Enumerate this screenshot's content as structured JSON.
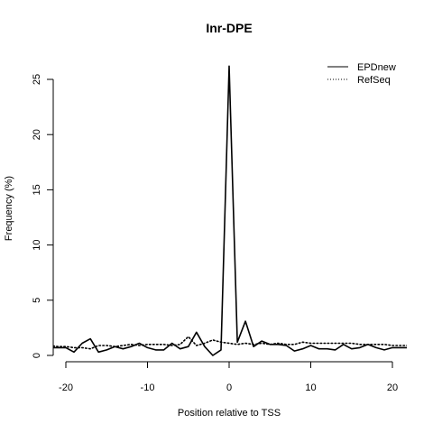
{
  "chart_data": {
    "type": "line",
    "title": "Inr-DPE",
    "xlabel": "Position relative to TSS",
    "ylabel": "Frequency (%)",
    "xlim": [
      -22,
      22
    ],
    "ylim": [
      0,
      27
    ],
    "xticks": [
      -20,
      -10,
      0,
      10,
      20
    ],
    "yticks": [
      0,
      5,
      10,
      15,
      20,
      25
    ],
    "grid": false,
    "legend_position": "top-right",
    "x": [
      -22,
      -21,
      -20,
      -19,
      -18,
      -17,
      -16,
      -15,
      -14,
      -13,
      -12,
      -11,
      -10,
      -9,
      -8,
      -7,
      -6,
      -5,
      -4,
      -3,
      -2,
      -1,
      0,
      1,
      2,
      3,
      4,
      5,
      6,
      7,
      8,
      9,
      10,
      11,
      12,
      13,
      14,
      15,
      16,
      17,
      18,
      19,
      20,
      21,
      22
    ],
    "series": [
      {
        "name": "EPDnew",
        "style": "solid",
        "values": [
          0.7,
          0.7,
          0.7,
          0.3,
          1.1,
          1.5,
          0.3,
          0.5,
          0.8,
          0.6,
          0.8,
          1.1,
          0.7,
          0.5,
          0.5,
          1.1,
          0.6,
          0.8,
          2.1,
          0.8,
          0.0,
          0.5,
          26.2,
          1.2,
          3.1,
          0.8,
          1.3,
          1.0,
          1.0,
          0.9,
          0.4,
          0.6,
          0.9,
          0.6,
          0.6,
          0.5,
          1.0,
          0.6,
          0.7,
          1.0,
          0.7,
          0.5,
          0.7,
          0.7,
          0.7
        ]
      },
      {
        "name": "RefSeq",
        "style": "dotted",
        "values": [
          0.9,
          0.8,
          0.8,
          0.7,
          0.7,
          0.6,
          0.9,
          0.9,
          0.8,
          0.9,
          1.0,
          0.9,
          1.0,
          1.0,
          1.0,
          0.9,
          1.0,
          1.7,
          0.9,
          1.1,
          1.4,
          1.2,
          1.1,
          1.0,
          1.1,
          1.0,
          1.1,
          1.0,
          1.1,
          1.0,
          1.0,
          1.2,
          1.1,
          1.1,
          1.1,
          1.1,
          1.1,
          1.1,
          1.0,
          1.0,
          1.0,
          1.0,
          0.9,
          0.9,
          0.9
        ]
      }
    ]
  }
}
